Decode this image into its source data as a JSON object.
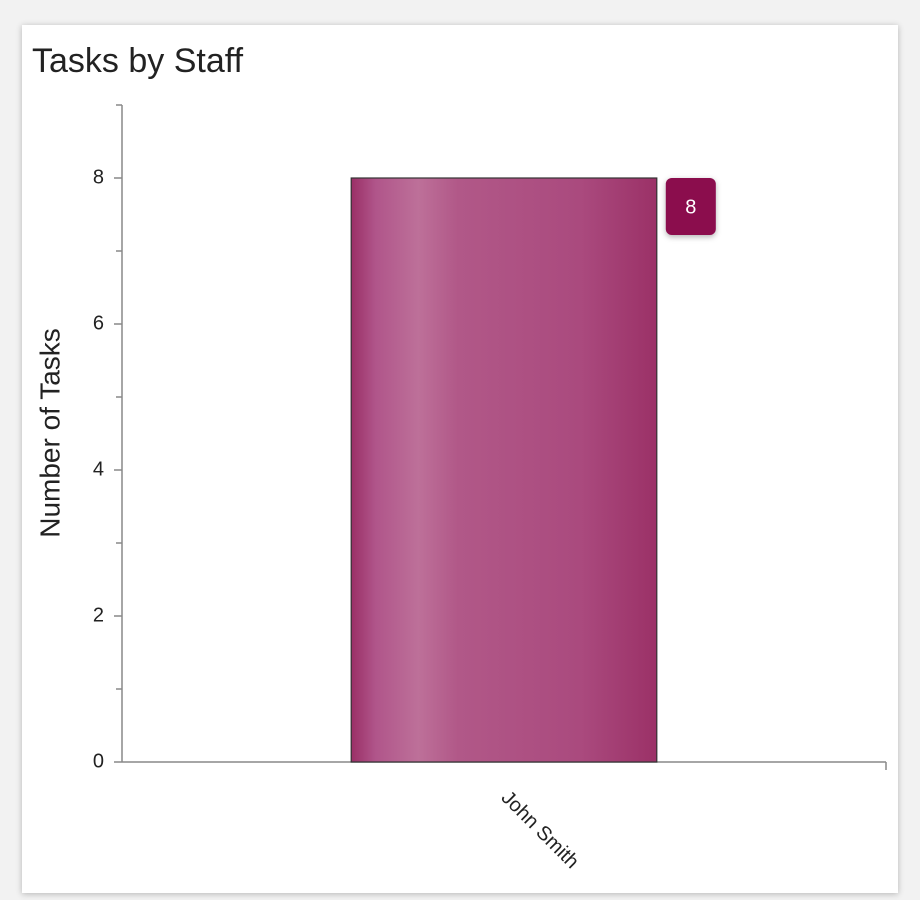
{
  "chart_data": {
    "type": "bar",
    "title": "Tasks by Staff",
    "y_label": "Number of Tasks",
    "categories": [
      "John Smith"
    ],
    "values": [
      8
    ],
    "color": "#a3396f",
    "label_color": "#8b0a4d",
    "ylim": [
      0,
      9
    ],
    "yticks": [
      0,
      2,
      4,
      6,
      8
    ],
    "minor_yticks": [
      1,
      3,
      5,
      7,
      9
    ]
  }
}
